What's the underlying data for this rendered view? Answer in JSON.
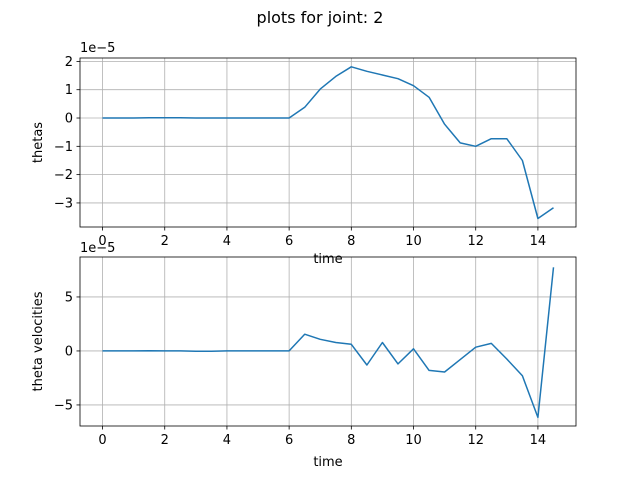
{
  "figure": {
    "suptitle": "plots for joint: 2",
    "line_color": "#1f77b4",
    "grid": true
  },
  "chart_data": [
    {
      "type": "line",
      "title": "",
      "xlabel": "time",
      "ylabel": "thetas",
      "offset_text": "1e−5",
      "xlim": [
        -0.725,
        15.225
      ],
      "ylim": [
        -3.85,
        2.12
      ],
      "xticks": [
        0,
        2,
        4,
        6,
        8,
        10,
        12,
        14
      ],
      "xtick_labels": [
        "0",
        "2",
        "4",
        "6",
        "8",
        "10",
        "12",
        "14"
      ],
      "yticks": [
        -3,
        -2,
        -1,
        0,
        1,
        2
      ],
      "ytick_labels": [
        "−3",
        "−2",
        "−1",
        "0",
        "1",
        "2"
      ],
      "x": [
        0,
        0.5,
        1,
        1.5,
        2,
        2.5,
        3,
        3.5,
        4,
        4.5,
        5,
        5.5,
        6,
        6.5,
        7,
        7.5,
        8,
        8.5,
        9,
        9.5,
        10,
        10.5,
        11,
        11.5,
        12,
        12.5,
        13,
        13.5,
        14,
        14.5
      ],
      "series": [
        {
          "values": [
            0,
            0,
            0,
            0.01,
            0.01,
            0.01,
            0,
            0,
            0,
            0,
            0,
            0,
            0,
            0.38,
            1.02,
            1.47,
            1.81,
            1.65,
            1.52,
            1.39,
            1.14,
            0.73,
            -0.22,
            -0.88,
            -1.0,
            -0.73,
            -0.73,
            -1.5,
            -3.55,
            -3.17
          ]
        }
      ]
    },
    {
      "type": "line",
      "title": "",
      "xlabel": "time",
      "ylabel": "theta velocities",
      "offset_text": "1e−5",
      "xlim": [
        -0.725,
        15.225
      ],
      "ylim": [
        -6.95,
        8.7
      ],
      "xticks": [
        0,
        2,
        4,
        6,
        8,
        10,
        12,
        14
      ],
      "xtick_labels": [
        "0",
        "2",
        "4",
        "6",
        "8",
        "10",
        "12",
        "14"
      ],
      "yticks": [
        -5,
        0,
        5
      ],
      "ytick_labels": [
        "−5",
        "0",
        "5"
      ],
      "x": [
        0,
        0.5,
        1,
        1.5,
        2,
        2.5,
        3,
        3.5,
        4,
        4.5,
        5,
        5.5,
        6,
        6.5,
        7,
        7.5,
        8,
        8.5,
        9,
        9.5,
        10,
        10.5,
        11,
        11.5,
        12,
        12.5,
        13,
        13.5,
        14,
        14.5
      ],
      "series": [
        {
          "values": [
            0,
            0,
            0,
            0.02,
            0,
            0,
            -0.02,
            -0.02,
            0,
            0,
            0,
            0,
            0,
            1.55,
            1.08,
            0.78,
            0.62,
            -1.3,
            0.78,
            -1.2,
            0.2,
            -1.8,
            -1.95,
            -0.8,
            0.35,
            0.7,
            -0.75,
            -2.3,
            -6.15,
            7.75
          ]
        }
      ]
    }
  ]
}
